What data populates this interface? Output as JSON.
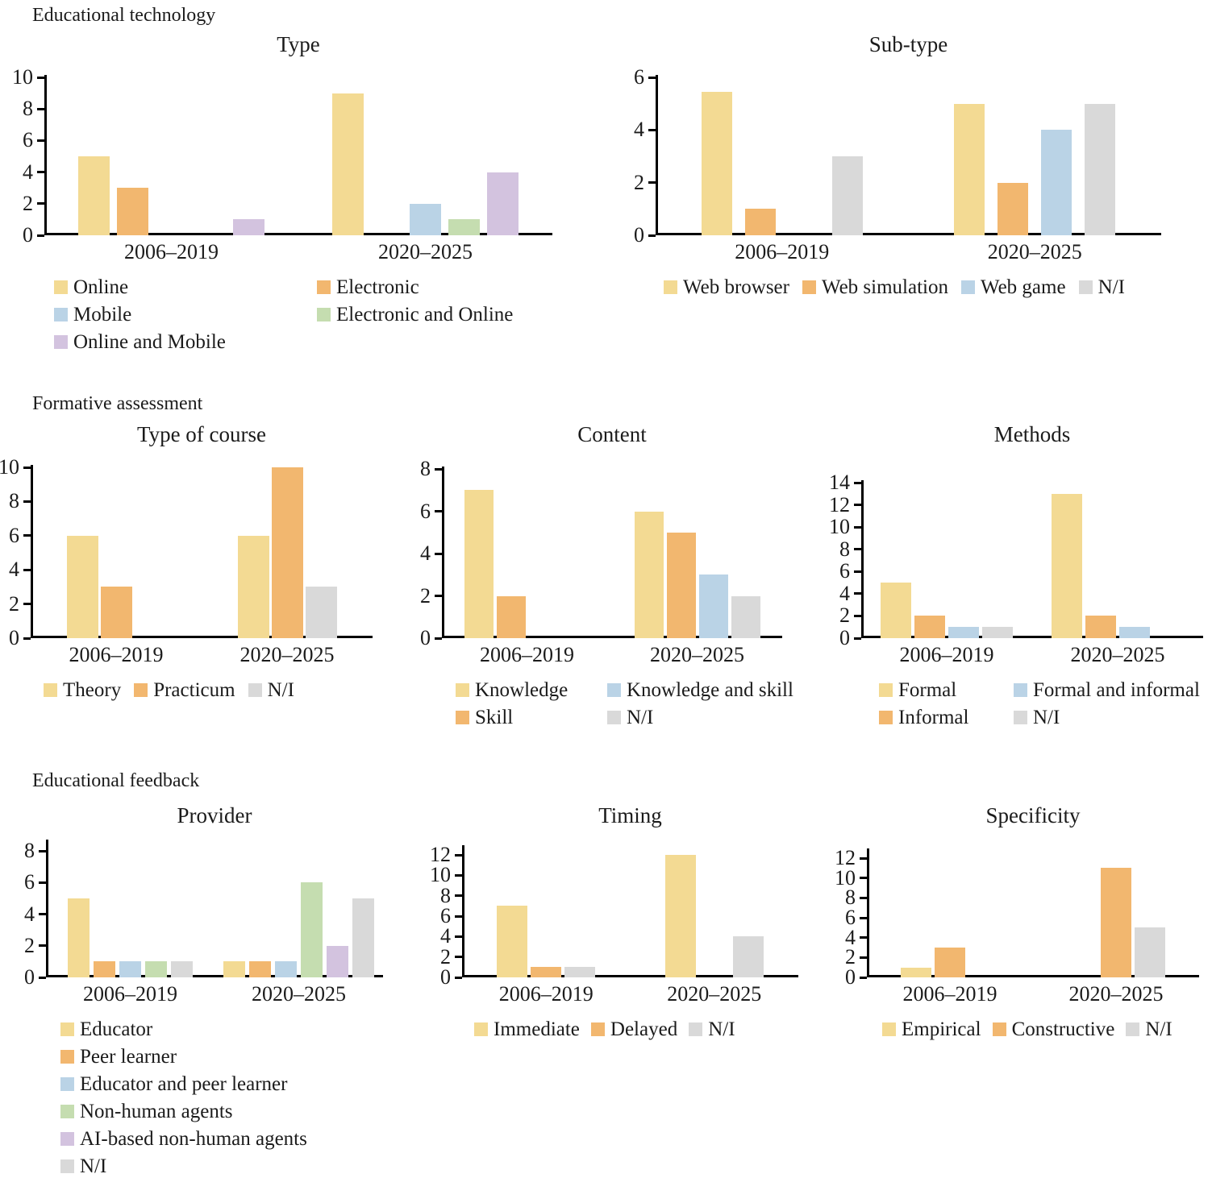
{
  "page": {
    "background": "#ffffff",
    "text_color": "#1b1b1b",
    "axis_color": "#000000"
  },
  "sections": [
    {
      "header": "Educational technology"
    },
    {
      "header": "Formative assessment"
    },
    {
      "header": "Educational feedback"
    }
  ],
  "palette": {
    "yellow": "#F3DA93",
    "orange": "#F2B76F",
    "blue": "#BAD3E6",
    "green": "#C5DDB0",
    "purple": "#D3C3DF",
    "grey": "#D9D9D9"
  },
  "chart_data": [
    {
      "type": "bar",
      "section": "Educational technology",
      "title": "Type",
      "categories": [
        "2006–2019",
        "2020–2025"
      ],
      "ylim": [
        0,
        10
      ],
      "yticks": [
        0,
        2,
        4,
        6,
        8,
        10
      ],
      "grid": false,
      "legend_position": "bottom",
      "series": [
        {
          "name": "Online",
          "color": "#F3DA93",
          "values": [
            5,
            9
          ]
        },
        {
          "name": "Electronic",
          "color": "#F2B76F",
          "values": [
            3,
            0
          ]
        },
        {
          "name": "Mobile",
          "color": "#BAD3E6",
          "values": [
            0,
            2
          ]
        },
        {
          "name": "Electronic and Online",
          "color": "#C5DDB0",
          "values": [
            0,
            1
          ]
        },
        {
          "name": "Online and Mobile",
          "color": "#D3C3DF",
          "values": [
            1,
            4
          ]
        }
      ]
    },
    {
      "type": "bar",
      "section": "Educational technology",
      "title": "Sub-type",
      "categories": [
        "2006–2019",
        "2020–2025"
      ],
      "ylim": [
        0,
        6
      ],
      "yticks": [
        0,
        2,
        4,
        6
      ],
      "grid": false,
      "legend_position": "bottom",
      "series": [
        {
          "name": "Web browser",
          "color": "#F3DA93",
          "values": [
            5.45,
            5
          ]
        },
        {
          "name": "Web simulation",
          "color": "#F2B76F",
          "values": [
            1,
            2
          ]
        },
        {
          "name": "Web game",
          "color": "#BAD3E6",
          "values": [
            0,
            4
          ]
        },
        {
          "name": "N/I",
          "color": "#D9D9D9",
          "values": [
            3,
            5
          ]
        }
      ]
    },
    {
      "type": "bar",
      "section": "Formative assessment",
      "title": "Type of course",
      "categories": [
        "2006–2019",
        "2020–2025"
      ],
      "ylim": [
        0,
        10
      ],
      "yticks": [
        0,
        2,
        4,
        6,
        8,
        10
      ],
      "grid": false,
      "legend_position": "bottom",
      "series": [
        {
          "name": "Theory",
          "color": "#F3DA93",
          "values": [
            6,
            6
          ]
        },
        {
          "name": "Practicum",
          "color": "#F2B76F",
          "values": [
            3,
            10
          ]
        },
        {
          "name": "N/I",
          "color": "#D9D9D9",
          "values": [
            0,
            3
          ]
        }
      ]
    },
    {
      "type": "bar",
      "section": "Formative assessment",
      "title": "Content",
      "categories": [
        "2006–2019",
        "2020–2025"
      ],
      "ylim": [
        0,
        8
      ],
      "yticks": [
        0,
        2,
        4,
        6,
        8
      ],
      "grid": false,
      "legend_position": "bottom",
      "series": [
        {
          "name": "Knowledge",
          "color": "#F3DA93",
          "values": [
            7,
            6
          ]
        },
        {
          "name": "Skill",
          "color": "#F2B76F",
          "values": [
            2,
            5
          ]
        },
        {
          "name": "Knowledge and skill",
          "color": "#BAD3E6",
          "values": [
            0,
            3
          ]
        },
        {
          "name": "N/I",
          "color": "#D9D9D9",
          "values": [
            0,
            2
          ]
        }
      ]
    },
    {
      "type": "bar",
      "section": "Formative assessment",
      "title": "Methods",
      "categories": [
        "2006–2019",
        "2020–2025"
      ],
      "ylim": [
        0,
        14
      ],
      "yticks": [
        0,
        2,
        4,
        6,
        8,
        10,
        12,
        14
      ],
      "grid": false,
      "legend_position": "bottom",
      "series": [
        {
          "name": "Formal",
          "color": "#F3DA93",
          "values": [
            5,
            13
          ]
        },
        {
          "name": "Informal",
          "color": "#F2B76F",
          "values": [
            2,
            2
          ]
        },
        {
          "name": "Formal and informal",
          "color": "#BAD3E6",
          "values": [
            1,
            1
          ]
        },
        {
          "name": "N/I",
          "color": "#D9D9D9",
          "values": [
            1,
            0
          ]
        }
      ]
    },
    {
      "type": "bar",
      "section": "Educational feedback",
      "title": "Provider",
      "categories": [
        "2006–2019",
        "2020–2025"
      ],
      "ylim": [
        0,
        8
      ],
      "yticks": [
        0,
        2,
        4,
        6,
        8
      ],
      "grid": false,
      "legend_position": "bottom",
      "series": [
        {
          "name": "Educator",
          "color": "#F3DA93",
          "values": [
            5,
            1
          ]
        },
        {
          "name": "Peer learner",
          "color": "#F2B76F",
          "values": [
            1,
            1
          ]
        },
        {
          "name": "Educator and peer learner",
          "color": "#BAD3E6",
          "values": [
            1,
            1
          ]
        },
        {
          "name": "Non-human agents",
          "color": "#C5DDB0",
          "values": [
            1,
            6
          ]
        },
        {
          "name": "AI-based non-human agents",
          "color": "#D3C3DF",
          "values": [
            null,
            2
          ]
        },
        {
          "name": "N/I",
          "color": "#D9D9D9",
          "values": [
            1,
            5
          ]
        }
      ]
    },
    {
      "type": "bar",
      "section": "Educational feedback",
      "title": "Timing",
      "categories": [
        "2006–2019",
        "2020–2025"
      ],
      "ylim": [
        0,
        12
      ],
      "yticks": [
        0,
        2,
        4,
        6,
        8,
        10,
        12
      ],
      "grid": false,
      "legend_position": "bottom",
      "series": [
        {
          "name": "Immediate",
          "color": "#F3DA93",
          "values": [
            7,
            12
          ]
        },
        {
          "name": "Delayed",
          "color": "#F2B76F",
          "values": [
            1,
            0
          ]
        },
        {
          "name": "N/I",
          "color": "#D9D9D9",
          "values": [
            1,
            4
          ]
        }
      ]
    },
    {
      "type": "bar",
      "section": "Educational feedback",
      "title": "Specificity",
      "categories": [
        "2006–2019",
        "2020–2025"
      ],
      "ylim": [
        0,
        12
      ],
      "yticks": [
        0,
        2,
        4,
        6,
        8,
        10,
        12
      ],
      "grid": false,
      "legend_position": "bottom",
      "series": [
        {
          "name": "Empirical",
          "color": "#F3DA93",
          "values": [
            1,
            0
          ]
        },
        {
          "name": "Constructive",
          "color": "#F2B76F",
          "values": [
            3,
            11
          ]
        },
        {
          "name": "N/I",
          "color": "#D9D9D9",
          "values": [
            0,
            5
          ]
        }
      ]
    }
  ]
}
